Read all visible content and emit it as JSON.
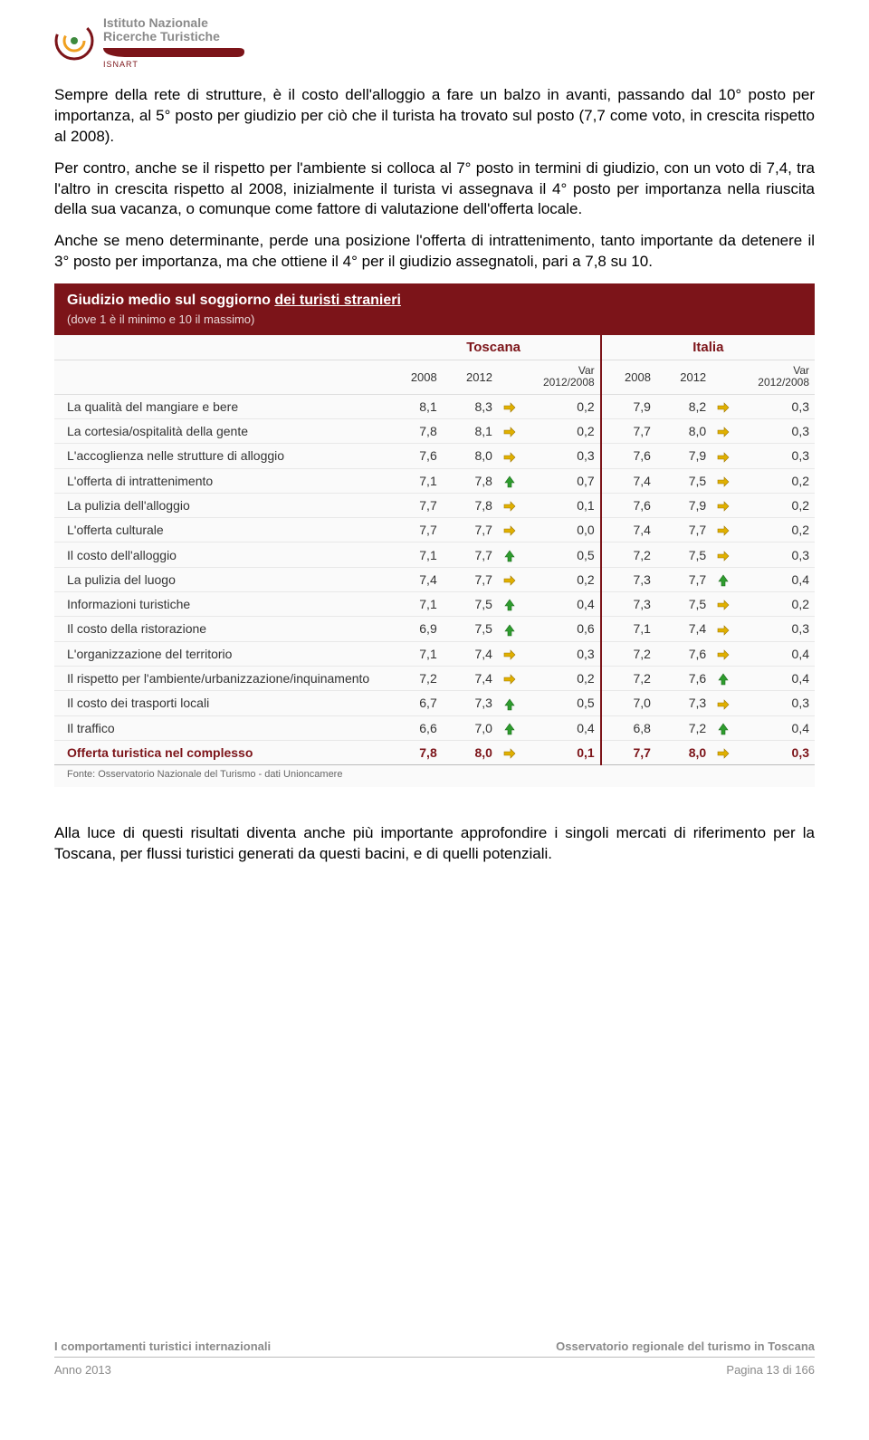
{
  "colors": {
    "brand_dark_red": "#7c1419",
    "brand_mid_red": "#b43a2f",
    "logo_green": "#3e8a3e",
    "logo_orange": "#f0a020",
    "grey_text": "#8a8a8a",
    "arrow_yellow": "#e0b000",
    "arrow_green": "#2e9c2e"
  },
  "header": {
    "org_line1": "Istituto Nazionale",
    "org_line2": "Ricerche Turistiche",
    "acronym": "ISNART"
  },
  "paragraphs": [
    "Sempre della rete di strutture, è il costo dell'alloggio a fare un balzo in avanti, passando dal 10° posto per importanza, al 5° posto per giudizio per ciò che il turista ha trovato sul posto (7,7 come voto, in crescita rispetto al 2008).",
    "Per contro, anche se il rispetto per l'ambiente si colloca al 7° posto in termini di giudizio, con un voto di 7,4, tra l'altro in crescita rispetto al 2008, inizialmente il turista vi assegnava il 4° posto per importanza nella riuscita della sua vacanza, o comunque come fattore di valutazione dell'offerta locale.",
    "Anche se meno determinante, perde una posizione l'offerta di intrattenimento, tanto importante da detenere il 3° posto per importanza, ma che ottiene il 4° per il giudizio assegnatoli, pari a 7,8 su 10."
  ],
  "table": {
    "title_prefix": "Giudizio medio sul soggiorno ",
    "title_underline": "dei turisti stranieri",
    "subtitle": "(dove 1 è il minimo e 10 il massimo)",
    "group_headers": [
      "Toscana",
      "Italia"
    ],
    "col_headers": [
      "2008",
      "2012",
      "Var 2012/2008",
      "2008",
      "2012",
      "Var 2012/2008"
    ],
    "rows": [
      {
        "label": "La qualità del mangiare e bere",
        "t08": "8,1",
        "t12": "8,3",
        "ta": "y",
        "tv": "0,2",
        "i08": "7,9",
        "i12": "8,2",
        "ia": "y",
        "iv": "0,3"
      },
      {
        "label": "La cortesia/ospitalità della gente",
        "t08": "7,8",
        "t12": "8,1",
        "ta": "y",
        "tv": "0,2",
        "i08": "7,7",
        "i12": "8,0",
        "ia": "y",
        "iv": "0,3"
      },
      {
        "label": "L'accoglienza nelle strutture di alloggio",
        "t08": "7,6",
        "t12": "8,0",
        "ta": "y",
        "tv": "0,3",
        "i08": "7,6",
        "i12": "7,9",
        "ia": "y",
        "iv": "0,3"
      },
      {
        "label": "L'offerta di intrattenimento",
        "t08": "7,1",
        "t12": "7,8",
        "ta": "g",
        "tv": "0,7",
        "i08": "7,4",
        "i12": "7,5",
        "ia": "y",
        "iv": "0,2"
      },
      {
        "label": "La pulizia dell'alloggio",
        "t08": "7,7",
        "t12": "7,8",
        "ta": "y",
        "tv": "0,1",
        "i08": "7,6",
        "i12": "7,9",
        "ia": "y",
        "iv": "0,2"
      },
      {
        "label": "L'offerta culturale",
        "t08": "7,7",
        "t12": "7,7",
        "ta": "y",
        "tv": "0,0",
        "i08": "7,4",
        "i12": "7,7",
        "ia": "y",
        "iv": "0,2"
      },
      {
        "label": "Il costo dell'alloggio",
        "t08": "7,1",
        "t12": "7,7",
        "ta": "g",
        "tv": "0,5",
        "i08": "7,2",
        "i12": "7,5",
        "ia": "y",
        "iv": "0,3"
      },
      {
        "label": "La pulizia del luogo",
        "t08": "7,4",
        "t12": "7,7",
        "ta": "y",
        "tv": "0,2",
        "i08": "7,3",
        "i12": "7,7",
        "ia": "g",
        "iv": "0,4"
      },
      {
        "label": "Informazioni turistiche",
        "t08": "7,1",
        "t12": "7,5",
        "ta": "g",
        "tv": "0,4",
        "i08": "7,3",
        "i12": "7,5",
        "ia": "y",
        "iv": "0,2"
      },
      {
        "label": "Il costo della ristorazione",
        "t08": "6,9",
        "t12": "7,5",
        "ta": "g",
        "tv": "0,6",
        "i08": "7,1",
        "i12": "7,4",
        "ia": "y",
        "iv": "0,3"
      },
      {
        "label": "L'organizzazione del territorio",
        "t08": "7,1",
        "t12": "7,4",
        "ta": "y",
        "tv": "0,3",
        "i08": "7,2",
        "i12": "7,6",
        "ia": "y",
        "iv": "0,4"
      },
      {
        "label": "Il rispetto per l'ambiente/urbanizzazione/inquinamento",
        "t08": "7,2",
        "t12": "7,4",
        "ta": "y",
        "tv": "0,2",
        "i08": "7,2",
        "i12": "7,6",
        "ia": "g",
        "iv": "0,4"
      },
      {
        "label": "Il costo dei trasporti locali",
        "t08": "6,7",
        "t12": "7,3",
        "ta": "g",
        "tv": "0,5",
        "i08": "7,0",
        "i12": "7,3",
        "ia": "y",
        "iv": "0,3"
      },
      {
        "label": "Il traffico",
        "t08": "6,6",
        "t12": "7,0",
        "ta": "g",
        "tv": "0,4",
        "i08": "6,8",
        "i12": "7,2",
        "ia": "g",
        "iv": "0,4"
      }
    ],
    "summary": {
      "label": "Offerta turistica nel complesso",
      "t08": "7,8",
      "t12": "8,0",
      "ta": "y",
      "tv": "0,1",
      "i08": "7,7",
      "i12": "8,0",
      "ia": "y",
      "iv": "0,3"
    },
    "source": "Fonte: Osservatorio Nazionale del Turismo - dati Unioncamere"
  },
  "closing_para": "Alla luce di questi risultati diventa anche più importante approfondire i singoli mercati di riferimento per la Toscana, per flussi turistici generati da questi bacini, e di quelli potenziali.",
  "footer": {
    "left_top": "I comportamenti turistici internazionali",
    "right_top": "Osservatorio regionale del turismo in Toscana",
    "left_bottom": "Anno 2013",
    "right_bottom": "Pagina 13 di 166"
  }
}
